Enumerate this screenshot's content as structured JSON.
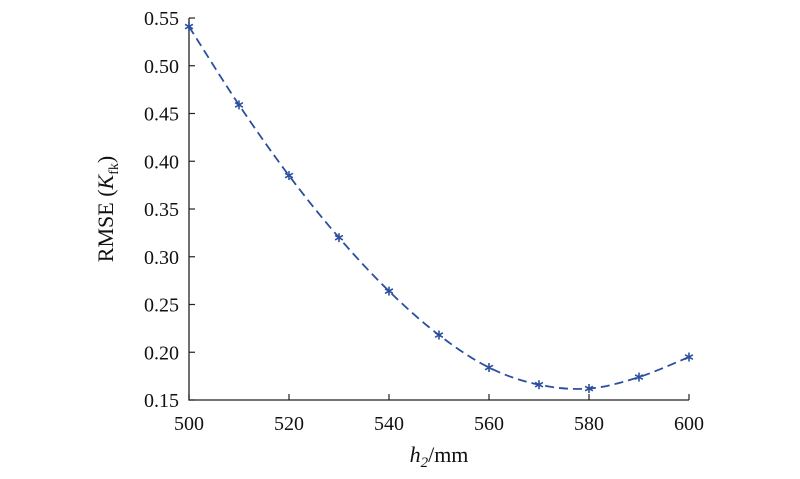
{
  "chart_data": {
    "type": "line",
    "xlabel_italic": "h",
    "xlabel_sub": "2",
    "xlabel_rest": "/mm",
    "ylabel_prefix": "RMSE (",
    "ylabel_italic": "K",
    "ylabel_sub": "fk",
    "ylabel_suffix": ")",
    "xlim": [
      500,
      600
    ],
    "ylim": [
      0.15,
      0.55
    ],
    "xticks": [
      500,
      520,
      540,
      560,
      580,
      600
    ],
    "yticks": [
      0.15,
      0.2,
      0.25,
      0.3,
      0.35,
      0.4,
      0.45,
      0.5,
      0.55
    ],
    "series": [
      {
        "x": [
          500,
          510,
          520,
          530,
          540,
          550,
          560,
          570,
          580,
          590,
          600
        ],
        "y": [
          0.541,
          0.459,
          0.385,
          0.32,
          0.264,
          0.218,
          0.184,
          0.166,
          0.162,
          0.174,
          0.195
        ],
        "color": "#2b4f9f",
        "line_style": "dashed",
        "marker": "asterisk"
      }
    ],
    "grid": false,
    "legend": "none"
  }
}
